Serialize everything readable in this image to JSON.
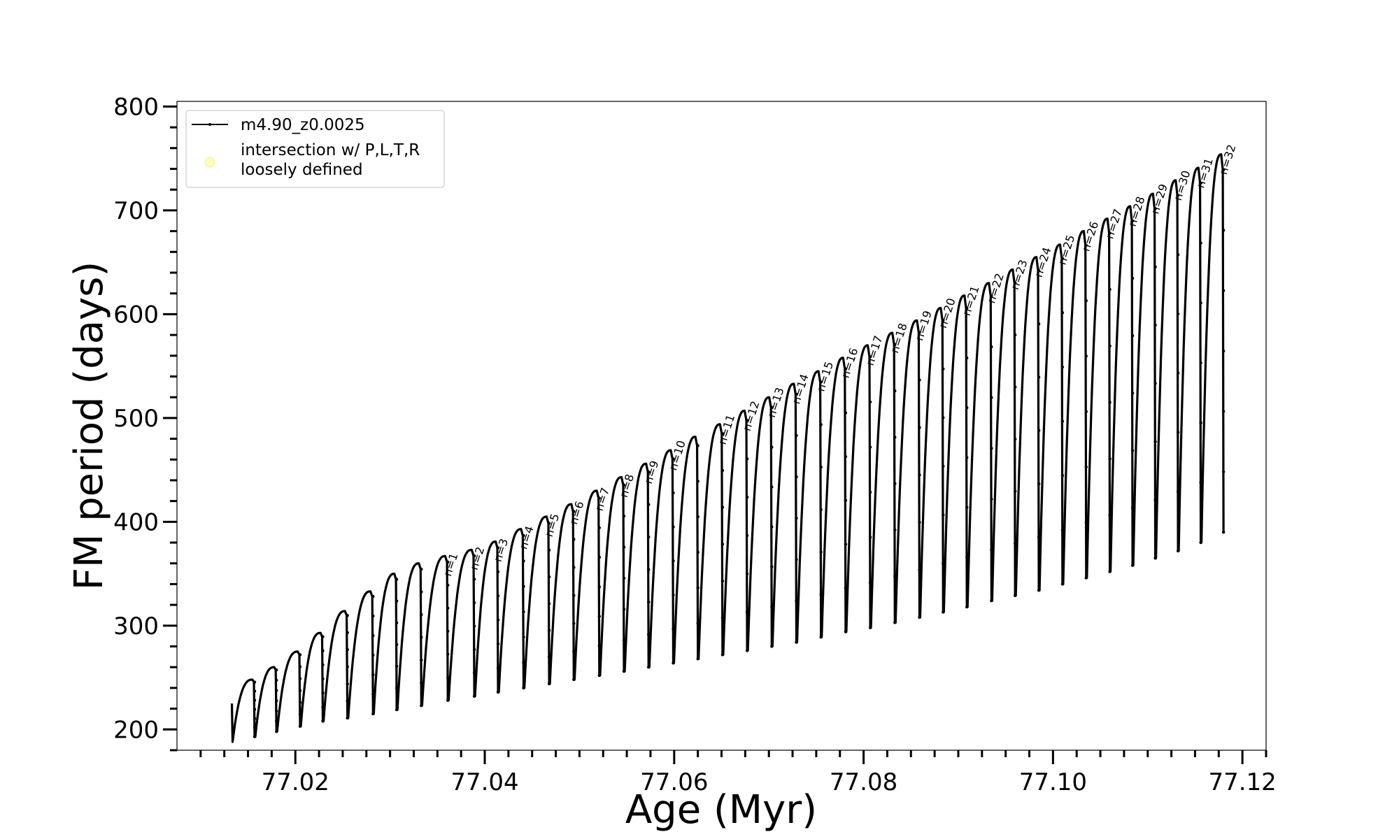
{
  "chart_data": {
    "type": "line",
    "title": "",
    "xlabel": "Age (Myr)",
    "ylabel": "FM period (days)",
    "xlim": [
      77.0075,
      77.1225
    ],
    "ylim": [
      180,
      805
    ],
    "x_ticks": [
      77.02,
      77.04,
      77.06,
      77.08,
      77.1,
      77.12
    ],
    "x_tick_labels": [
      "77.02",
      "77.04",
      "77.06",
      "77.08",
      "77.10",
      "77.12"
    ],
    "x_minor_step": 0.0025,
    "y_ticks": [
      200,
      300,
      400,
      500,
      600,
      700,
      800
    ],
    "y_tick_labels": [
      "200",
      "300",
      "400",
      "500",
      "600",
      "700",
      "800"
    ],
    "y_minor_step": 20,
    "grid": false,
    "legend_position": "top-left",
    "colors": {
      "line": "#000000",
      "marker_intersection": "#fffbb8"
    },
    "series": [
      {
        "name": "m4.90_z0.0025",
        "kind": "pulse-sequence",
        "pulses": [
          {
            "start": 77.0133,
            "end": 77.0157,
            "min": 188,
            "peak": 248,
            "start_value": 225
          },
          {
            "start": 77.0157,
            "end": 77.018,
            "min": 193,
            "peak": 260
          },
          {
            "start": 77.018,
            "end": 77.0205,
            "min": 198,
            "peak": 275
          },
          {
            "start": 77.0205,
            "end": 77.0229,
            "min": 203,
            "peak": 293
          },
          {
            "start": 77.0229,
            "end": 77.0255,
            "min": 208,
            "peak": 314
          },
          {
            "start": 77.0255,
            "end": 77.0282,
            "min": 211,
            "peak": 333
          },
          {
            "start": 77.0282,
            "end": 77.0307,
            "min": 215,
            "peak": 350
          },
          {
            "start": 77.0307,
            "end": 77.0333,
            "min": 219,
            "peak": 360
          },
          {
            "start": 77.0333,
            "end": 77.0361,
            "min": 223,
            "peak": 367
          },
          {
            "start": 77.0361,
            "end": 77.0389,
            "min": 228,
            "peak": 373
          },
          {
            "start": 77.0389,
            "end": 77.0414,
            "min": 232,
            "peak": 381
          },
          {
            "start": 77.0414,
            "end": 77.0441,
            "min": 236,
            "peak": 393
          },
          {
            "start": 77.0441,
            "end": 77.0468,
            "min": 240,
            "peak": 405
          },
          {
            "start": 77.0468,
            "end": 77.0494,
            "min": 244,
            "peak": 417
          },
          {
            "start": 77.0494,
            "end": 77.0521,
            "min": 248,
            "peak": 430
          },
          {
            "start": 77.0521,
            "end": 77.0547,
            "min": 252,
            "peak": 443
          },
          {
            "start": 77.0547,
            "end": 77.0573,
            "min": 256,
            "peak": 456
          },
          {
            "start": 77.0573,
            "end": 77.0599,
            "min": 260,
            "peak": 469
          },
          {
            "start": 77.0599,
            "end": 77.0625,
            "min": 264,
            "peak": 482
          },
          {
            "start": 77.0625,
            "end": 77.0651,
            "min": 268,
            "peak": 494
          },
          {
            "start": 77.0651,
            "end": 77.0677,
            "min": 272,
            "peak": 507
          },
          {
            "start": 77.0677,
            "end": 77.0703,
            "min": 276,
            "peak": 520
          },
          {
            "start": 77.0703,
            "end": 77.0729,
            "min": 280,
            "peak": 533
          },
          {
            "start": 77.0729,
            "end": 77.0755,
            "min": 284,
            "peak": 545
          },
          {
            "start": 77.0755,
            "end": 77.0781,
            "min": 289,
            "peak": 558
          },
          {
            "start": 77.0781,
            "end": 77.0807,
            "min": 294,
            "peak": 570
          },
          {
            "start": 77.0807,
            "end": 77.0833,
            "min": 298,
            "peak": 582
          },
          {
            "start": 77.0833,
            "end": 77.0859,
            "min": 303,
            "peak": 594
          },
          {
            "start": 77.0859,
            "end": 77.0884,
            "min": 308,
            "peak": 606
          },
          {
            "start": 77.0884,
            "end": 77.0909,
            "min": 313,
            "peak": 618
          },
          {
            "start": 77.0909,
            "end": 77.0935,
            "min": 318,
            "peak": 630
          },
          {
            "start": 77.0935,
            "end": 77.096,
            "min": 324,
            "peak": 643
          },
          {
            "start": 77.096,
            "end": 77.0985,
            "min": 329,
            "peak": 655
          },
          {
            "start": 77.0985,
            "end": 77.101,
            "min": 334,
            "peak": 667
          },
          {
            "start": 77.101,
            "end": 77.1035,
            "min": 340,
            "peak": 680
          },
          {
            "start": 77.1035,
            "end": 77.106,
            "min": 346,
            "peak": 692
          },
          {
            "start": 77.106,
            "end": 77.1084,
            "min": 352,
            "peak": 704
          },
          {
            "start": 77.1084,
            "end": 77.1108,
            "min": 358,
            "peak": 716
          },
          {
            "start": 77.1108,
            "end": 77.1132,
            "min": 365,
            "peak": 729
          },
          {
            "start": 77.1132,
            "end": 77.1156,
            "min": 372,
            "peak": 741
          },
          {
            "start": 77.1156,
            "end": 77.118,
            "min": 380,
            "peak": 754,
            "end_value": 390
          }
        ]
      },
      {
        "name": "intersection w/ P,L,T,R\nloosely defined",
        "kind": "marker",
        "values": []
      }
    ],
    "annotations": [
      {
        "text": "n=1",
        "x": 77.0361,
        "y": 367
      },
      {
        "text": "n=2",
        "x": 77.0389,
        "y": 373
      },
      {
        "text": "n=3",
        "x": 77.0414,
        "y": 381
      },
      {
        "text": "n=4",
        "x": 77.0441,
        "y": 393
      },
      {
        "text": "n=5",
        "x": 77.0468,
        "y": 405
      },
      {
        "text": "n=6",
        "x": 77.0494,
        "y": 417
      },
      {
        "text": "n=7",
        "x": 77.0521,
        "y": 430
      },
      {
        "text": "n=8",
        "x": 77.0547,
        "y": 443
      },
      {
        "text": "n=9",
        "x": 77.0573,
        "y": 456
      },
      {
        "text": "n=10",
        "x": 77.0599,
        "y": 469
      },
      {
        "text": "n=11",
        "x": 77.0651,
        "y": 494
      },
      {
        "text": "n=12",
        "x": 77.0677,
        "y": 507
      },
      {
        "text": "n=13",
        "x": 77.0703,
        "y": 520
      },
      {
        "text": "n=14",
        "x": 77.0729,
        "y": 533
      },
      {
        "text": "n=15",
        "x": 77.0755,
        "y": 545
      },
      {
        "text": "n=16",
        "x": 77.0781,
        "y": 558
      },
      {
        "text": "n=17",
        "x": 77.0807,
        "y": 570
      },
      {
        "text": "n=18",
        "x": 77.0833,
        "y": 582
      },
      {
        "text": "n=19",
        "x": 77.0859,
        "y": 594
      },
      {
        "text": "n=20",
        "x": 77.0884,
        "y": 606
      },
      {
        "text": "n=21",
        "x": 77.0909,
        "y": 618
      },
      {
        "text": "n=22",
        "x": 77.0935,
        "y": 630
      },
      {
        "text": "n=23",
        "x": 77.096,
        "y": 643
      },
      {
        "text": "n=24",
        "x": 77.0985,
        "y": 655
      },
      {
        "text": "n=25",
        "x": 77.101,
        "y": 667
      },
      {
        "text": "n=26",
        "x": 77.1035,
        "y": 680
      },
      {
        "text": "n=27",
        "x": 77.106,
        "y": 692
      },
      {
        "text": "n=28",
        "x": 77.1084,
        "y": 704
      },
      {
        "text": "n=29",
        "x": 77.1108,
        "y": 716
      },
      {
        "text": "n=30",
        "x": 77.1132,
        "y": 729
      },
      {
        "text": "n=31",
        "x": 77.1156,
        "y": 741
      },
      {
        "text": "n=32",
        "x": 77.118,
        "y": 754
      }
    ]
  }
}
